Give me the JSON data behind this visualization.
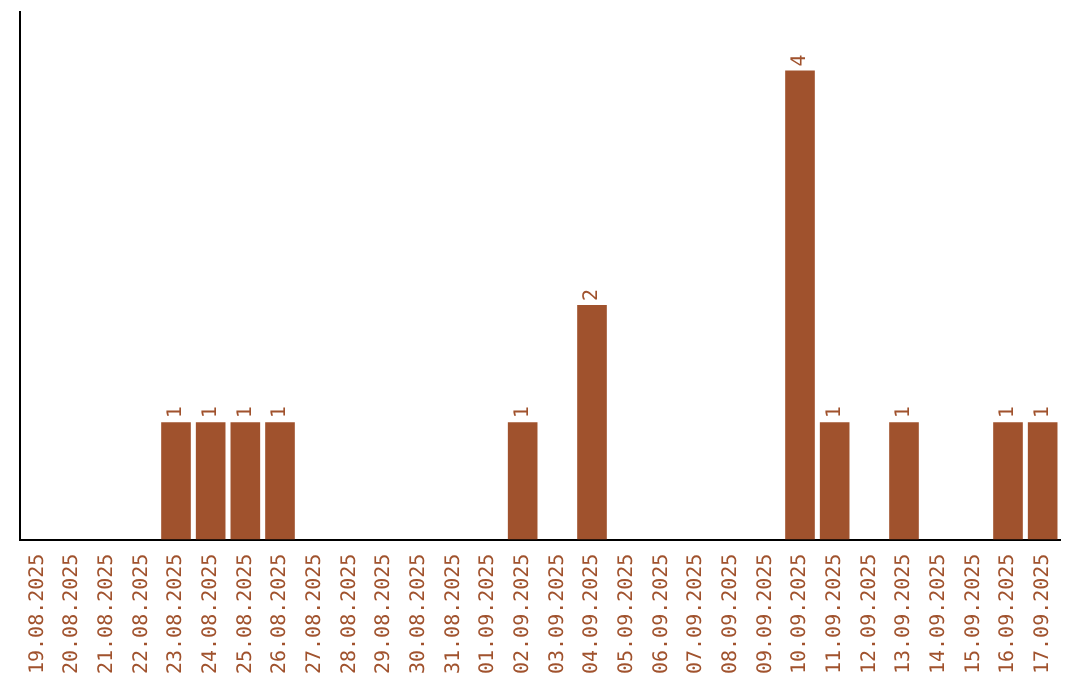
{
  "chart_data": {
    "type": "bar",
    "categories": [
      "19.08.2025",
      "20.08.2025",
      "21.08.2025",
      "22.08.2025",
      "23.08.2025",
      "24.08.2025",
      "25.08.2025",
      "26.08.2025",
      "27.08.2025",
      "28.08.2025",
      "29.08.2025",
      "30.08.2025",
      "31.08.2025",
      "01.09.2025",
      "02.09.2025",
      "03.09.2025",
      "04.09.2025",
      "05.09.2025",
      "06.09.2025",
      "07.09.2025",
      "08.09.2025",
      "09.09.2025",
      "10.09.2025",
      "11.09.2025",
      "12.09.2025",
      "13.09.2025",
      "14.09.2025",
      "15.09.2025",
      "16.09.2025",
      "17.09.2025"
    ],
    "values": [
      0,
      0,
      0,
      0,
      1,
      1,
      1,
      1,
      0,
      0,
      0,
      0,
      0,
      0,
      1,
      0,
      2,
      0,
      0,
      0,
      0,
      0,
      4,
      1,
      0,
      1,
      0,
      0,
      1,
      1
    ],
    "value_labels": [
      null,
      null,
      null,
      null,
      "1",
      "1",
      "1",
      "1",
      null,
      null,
      null,
      null,
      null,
      null,
      "1",
      null,
      "2",
      null,
      null,
      null,
      null,
      null,
      "4",
      "1",
      null,
      "1",
      null,
      null,
      "1",
      "1"
    ],
    "color": "#a0522d",
    "grid": false,
    "legend": false,
    "tick_labels": "x"
  }
}
